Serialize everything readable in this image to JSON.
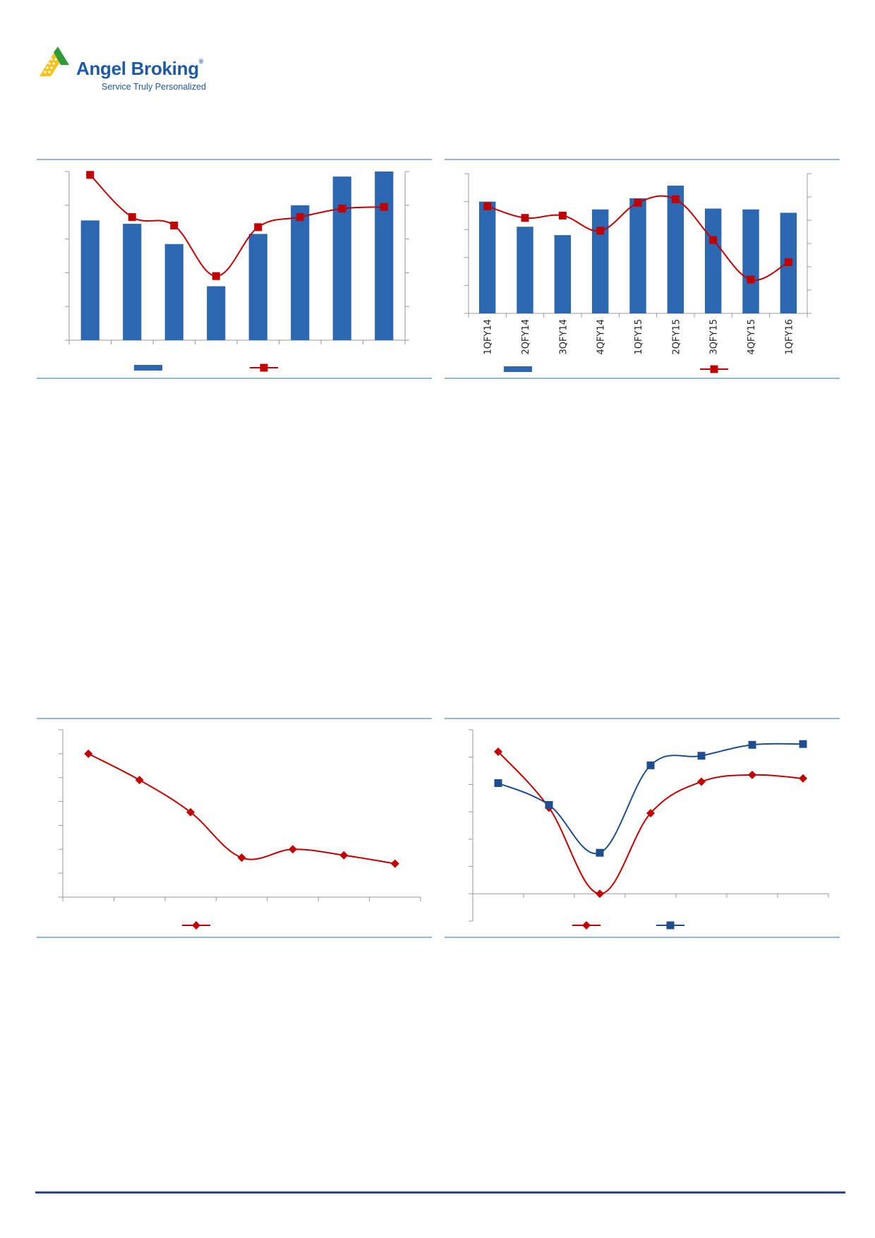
{
  "brand": {
    "name": "Angel Broking",
    "registered_mark": "®",
    "tagline": "Service Truly Personalized",
    "colors": {
      "blue": "#1f5aa6",
      "green": "#2f9a3a",
      "yellow": "#f4c21b"
    }
  },
  "chart_data": [
    {
      "type": "bar",
      "subtype": "bar-with-line-dual-axis",
      "categories": [
        "",
        "",
        "",
        "",
        "",
        "",
        "",
        ""
      ],
      "series": [
        {
          "type": "bar",
          "values": [
            3.55,
            3.45,
            2.85,
            1.6,
            3.15,
            4.0,
            4.85,
            5.0
          ],
          "color": "#2e67b1"
        },
        {
          "type": "line",
          "values": [
            4.9,
            3.65,
            3.4,
            1.9,
            3.35,
            3.65,
            3.9,
            3.95
          ],
          "color": "#c00000",
          "marker": "square"
        }
      ],
      "ylim": [
        0,
        5
      ],
      "y2lim": [
        0,
        5
      ],
      "legend": "bottom",
      "grid": false
    },
    {
      "type": "bar",
      "subtype": "bar-with-line-dual-axis",
      "categories": [
        "1QFY14",
        "2QFY14",
        "3QFY14",
        "4QFY14",
        "1QFY15",
        "2QFY15",
        "3QFY15",
        "4QFY15",
        "1QFY16"
      ],
      "series": [
        {
          "type": "bar",
          "values": [
            4.0,
            3.1,
            2.8,
            3.72,
            4.12,
            4.57,
            3.75,
            3.72,
            3.6
          ],
          "color": "#2e67b1"
        },
        {
          "type": "line",
          "values": [
            4.6,
            4.1,
            4.2,
            3.55,
            4.75,
            4.9,
            3.15,
            1.45,
            2.2
          ],
          "color": "#c00000",
          "marker": "square"
        }
      ],
      "ylim": [
        0,
        5
      ],
      "y2lim": [
        0,
        6
      ],
      "legend": "bottom",
      "grid": false
    },
    {
      "type": "line",
      "x": [
        "",
        "",
        "",
        "",
        "",
        "",
        ""
      ],
      "series": [
        {
          "values": [
            6.0,
            4.9,
            3.55,
            1.65,
            2.0,
            1.75,
            1.4
          ],
          "color": "#c00000",
          "marker": "diamond"
        }
      ],
      "ylim": [
        0,
        7
      ],
      "legend": "bottom",
      "grid": false
    },
    {
      "type": "line",
      "x": [
        "",
        "",
        "",
        "",
        "",
        "",
        ""
      ],
      "series": [
        {
          "values": [
            5.2,
            3.15,
            0.0,
            2.95,
            4.1,
            4.35,
            4.22
          ],
          "color": "#c00000",
          "marker": "diamond"
        },
        {
          "values": [
            4.05,
            3.25,
            1.5,
            4.7,
            5.05,
            5.45,
            5.48
          ],
          "color": "#1f4e8c",
          "marker": "square"
        }
      ],
      "ylim": [
        -1,
        6
      ],
      "legend": "bottom",
      "grid": false
    }
  ]
}
